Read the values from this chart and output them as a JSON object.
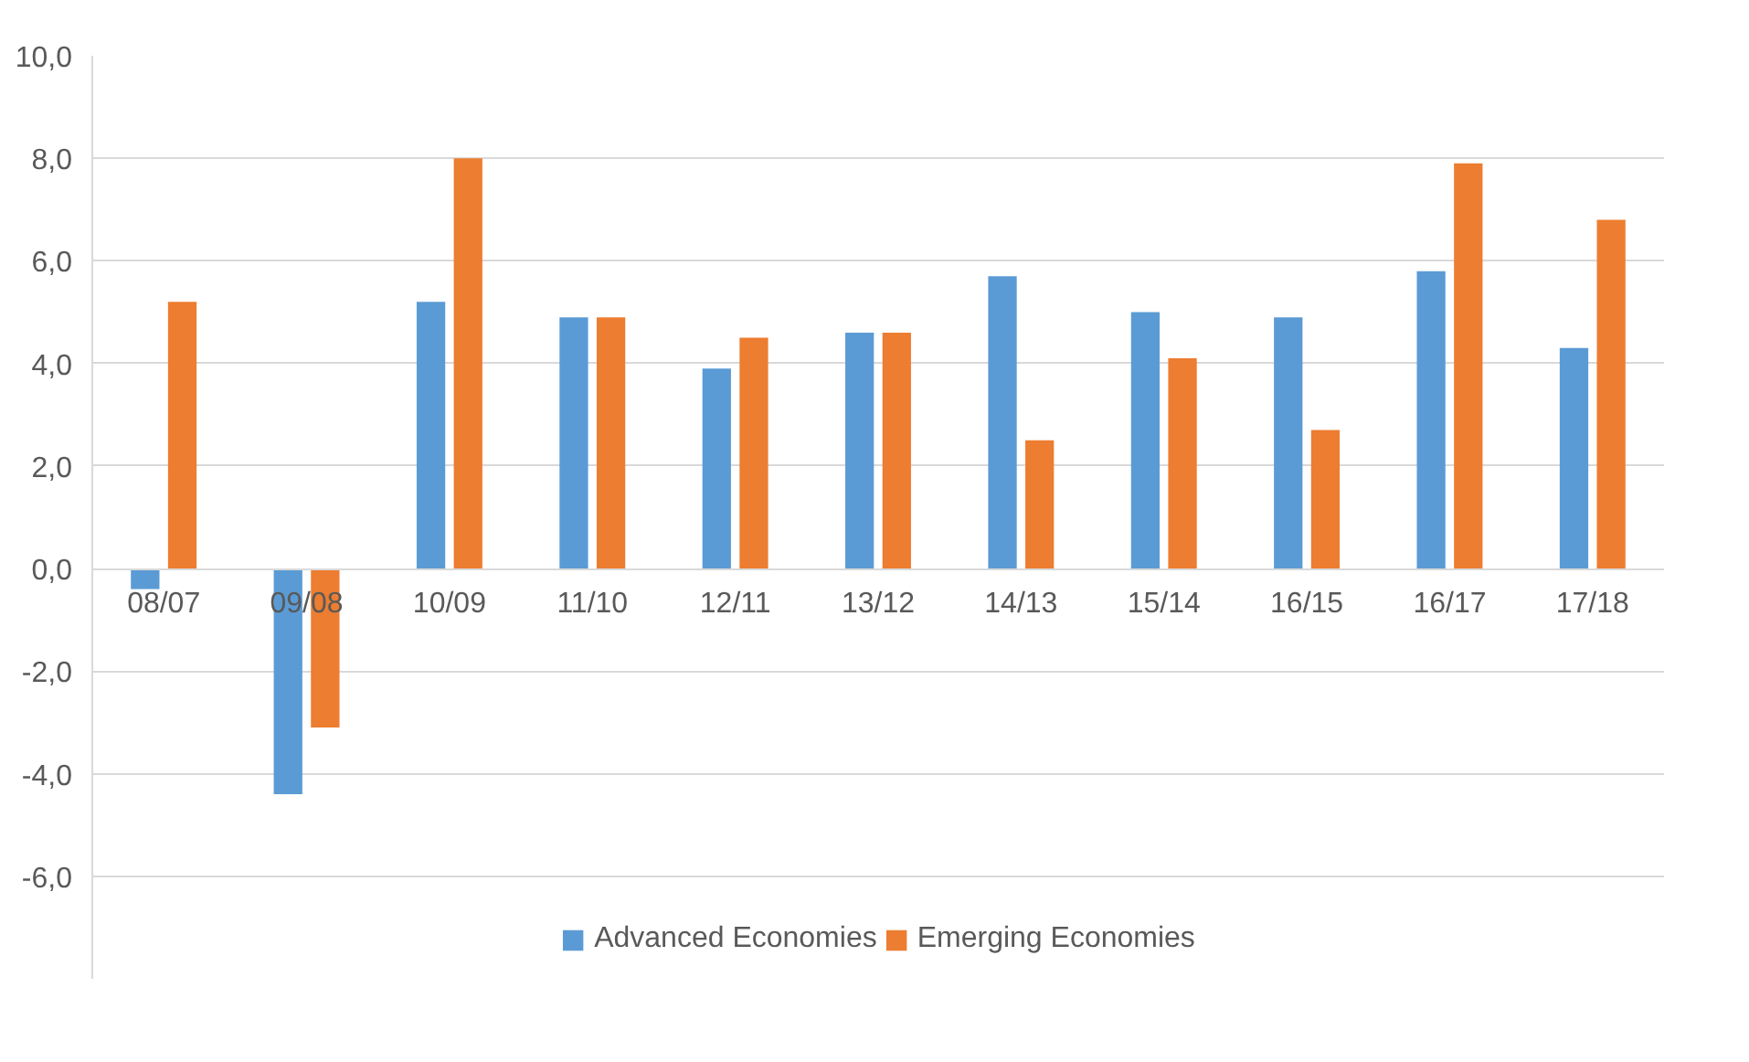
{
  "chart_data": {
    "type": "bar",
    "categories": [
      "08/07",
      "09/08",
      "10/09",
      "11/10",
      "12/11",
      "13/12",
      "14/13",
      "15/14",
      "16/15",
      "16/17",
      "17/18"
    ],
    "series": [
      {
        "name": "Advanced Economies",
        "color": "#5b9bd5",
        "values": [
          -0.4,
          -4.4,
          5.2,
          4.9,
          3.9,
          4.6,
          5.7,
          5.0,
          4.9,
          5.8,
          4.3
        ]
      },
      {
        "name": "Emerging Economies",
        "color": "#ed7d31",
        "values": [
          5.2,
          -3.1,
          8.0,
          4.9,
          4.5,
          4.6,
          2.5,
          4.1,
          2.7,
          7.9,
          6.8
        ]
      }
    ],
    "ylim": [
      -8.0,
      10.0
    ],
    "yticks": [
      {
        "value": -6,
        "label": "-6,0"
      },
      {
        "value": -4,
        "label": "-4,0"
      },
      {
        "value": -2,
        "label": "-2,0"
      },
      {
        "value": 0,
        "label": "0,0"
      },
      {
        "value": 2,
        "label": "2,0"
      },
      {
        "value": 4,
        "label": "4,0"
      },
      {
        "value": 6,
        "label": "6,0"
      },
      {
        "value": 8,
        "label": "8,0"
      },
      {
        "value": 10,
        "label": "10,0"
      }
    ],
    "grid": "y",
    "legend": "bottom"
  }
}
